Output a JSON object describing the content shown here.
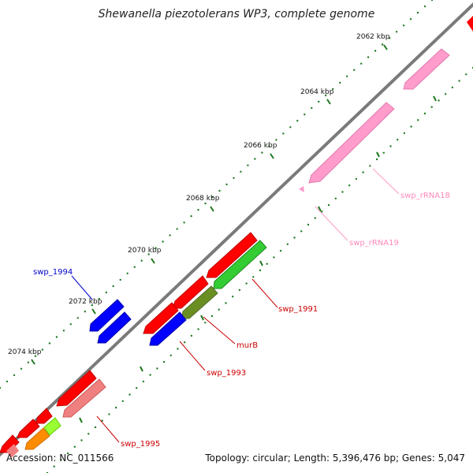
{
  "title": "Shewanella piezotolerans WP3, complete genome",
  "footer": {
    "accession": "Accession: NC_011566",
    "summary": "Topology: circular; Length: 5,396,476 bp; Genes: 5,047"
  },
  "colors": {
    "backbone": "#7a7a7a",
    "tick": "#1f7a1f",
    "red": "#ff0000",
    "blue": "#0000ff",
    "green": "#33cc33",
    "olive": "#6b8e23",
    "pink": "#ff9ccc",
    "salmon": "#f08080",
    "orange": "#ff8c00",
    "lime": "#99ff33",
    "label_blue": "#0000cc",
    "label_red": "#cc0000",
    "label_pink": "#ff88bb"
  },
  "axis_labels": [
    {
      "text": "2062 kbp"
    },
    {
      "text": "2064 kbp"
    },
    {
      "text": "2066 kbp"
    },
    {
      "text": "2068 kbp"
    },
    {
      "text": "2070 kbp"
    },
    {
      "text": "2072 kbp"
    },
    {
      "text": "2074 kbp"
    }
  ],
  "gene_labels": [
    {
      "text": "swp_rRNA18",
      "color": "label_pink"
    },
    {
      "text": "swp_rRNA19",
      "color": "label_pink"
    },
    {
      "text": "swp_1991",
      "color": "label_red"
    },
    {
      "text": "murB",
      "color": "label_red"
    },
    {
      "text": "swp_1993",
      "color": "label_red"
    },
    {
      "text": "swp_1994",
      "color": "label_blue"
    },
    {
      "text": "swp_1995",
      "color": "label_red"
    }
  ]
}
